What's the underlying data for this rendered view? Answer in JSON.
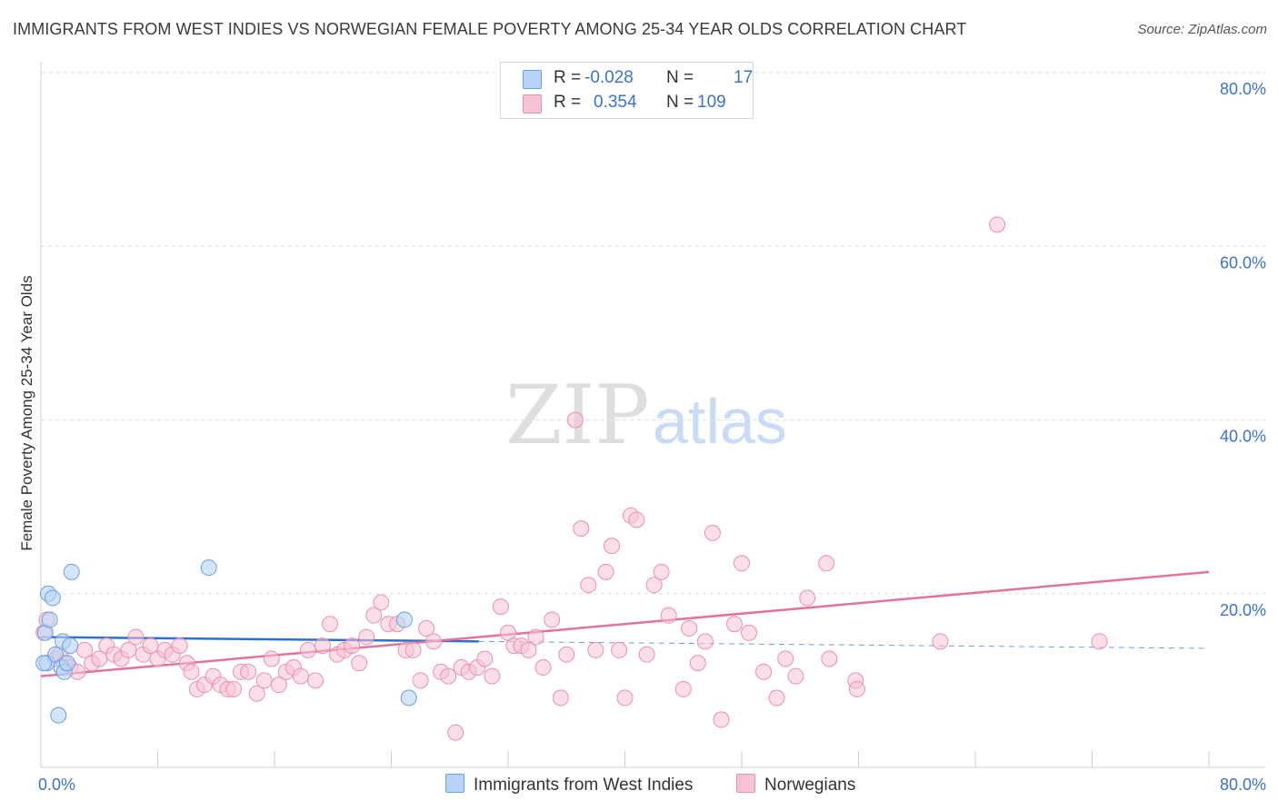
{
  "title": "IMMIGRANTS FROM WEST INDIES VS NORWEGIAN FEMALE POVERTY AMONG 25-34 YEAR OLDS CORRELATION CHART",
  "source": "Source: ZipAtlas.com",
  "watermark": {
    "zip": "ZIP",
    "atlas": "atlas"
  },
  "legend": {
    "rows": [
      {
        "r_label": "R =",
        "r_value": "-0.028",
        "n_label": "N =",
        "n_value": "17"
      },
      {
        "r_label": "R =",
        "r_value": "0.354",
        "n_label": "N =",
        "n_value": "109"
      }
    ]
  },
  "colors": {
    "blue_fill": "#b8d3f5",
    "blue_stroke": "#6a9fe0",
    "blue_line": "#2f6fd1",
    "pink_fill": "#f7c2d4",
    "pink_stroke": "#e890b0",
    "pink_line": "#e2729a",
    "tick_label": "#3b73c7"
  },
  "chart_data": {
    "type": "scatter",
    "title": "IMMIGRANTS FROM WEST INDIES VS NORWEGIAN FEMALE POVERTY AMONG 25-34 YEAR OLDS CORRELATION CHART",
    "xlabel": "",
    "ylabel": "Female Poverty Among 25-34 Year Olds",
    "xlim": [
      0,
      80
    ],
    "ylim": [
      0,
      80
    ],
    "x_tick_labels": [
      "0.0%",
      "80.0%"
    ],
    "y_tick_labels": [
      "20.0%",
      "40.0%",
      "60.0%",
      "80.0%"
    ],
    "y_ticks": [
      20,
      40,
      60,
      80
    ],
    "grid": true,
    "legend_position": "top-center",
    "series": [
      {
        "name": "Immigrants from West Indies",
        "color": "blue",
        "trend": {
          "x": [
            0,
            30
          ],
          "y": [
            15.0,
            14.5
          ],
          "dashed_to": [
            80,
            13.7
          ]
        },
        "points": [
          [
            0.3,
            15.5
          ],
          [
            0.4,
            12.0
          ],
          [
            0.5,
            20.0
          ],
          [
            0.6,
            17.0
          ],
          [
            0.8,
            19.5
          ],
          [
            1.0,
            13.0
          ],
          [
            1.2,
            6.0
          ],
          [
            1.4,
            11.5
          ],
          [
            1.5,
            14.5
          ],
          [
            1.6,
            11.0
          ],
          [
            1.8,
            12.0
          ],
          [
            2.0,
            14.0
          ],
          [
            2.1,
            22.5
          ],
          [
            11.5,
            23.0
          ],
          [
            24.9,
            17.0
          ],
          [
            25.2,
            8.0
          ],
          [
            0.2,
            12.0
          ]
        ]
      },
      {
        "name": "Norwegians",
        "color": "pink",
        "trend": {
          "x": [
            0,
            80
          ],
          "y": [
            10.5,
            22.5
          ]
        },
        "points": [
          [
            0.2,
            15.5
          ],
          [
            0.4,
            17.0
          ],
          [
            1.0,
            12.5
          ],
          [
            1.3,
            13.0
          ],
          [
            1.6,
            12.0
          ],
          [
            2.0,
            11.5
          ],
          [
            2.5,
            11.0
          ],
          [
            3.0,
            13.5
          ],
          [
            3.5,
            12.0
          ],
          [
            4.0,
            12.5
          ],
          [
            4.5,
            14.0
          ],
          [
            5.0,
            13.0
          ],
          [
            5.5,
            12.5
          ],
          [
            6.0,
            13.5
          ],
          [
            6.5,
            15.0
          ],
          [
            7.0,
            13.0
          ],
          [
            7.5,
            14.0
          ],
          [
            8.0,
            12.5
          ],
          [
            8.5,
            13.5
          ],
          [
            9.0,
            13.0
          ],
          [
            9.5,
            14.0
          ],
          [
            10.0,
            12.0
          ],
          [
            10.3,
            11.0
          ],
          [
            10.7,
            9.0
          ],
          [
            11.2,
            9.5
          ],
          [
            11.8,
            10.5
          ],
          [
            12.3,
            9.5
          ],
          [
            12.8,
            9.0
          ],
          [
            13.2,
            9.0
          ],
          [
            13.7,
            11.0
          ],
          [
            14.2,
            11.0
          ],
          [
            14.8,
            8.5
          ],
          [
            15.3,
            10.0
          ],
          [
            15.8,
            12.5
          ],
          [
            16.3,
            9.5
          ],
          [
            16.8,
            11.0
          ],
          [
            17.3,
            11.5
          ],
          [
            17.8,
            10.5
          ],
          [
            18.3,
            13.5
          ],
          [
            18.8,
            10.0
          ],
          [
            19.3,
            14.0
          ],
          [
            19.8,
            16.5
          ],
          [
            20.3,
            13.0
          ],
          [
            20.8,
            13.5
          ],
          [
            21.3,
            14.0
          ],
          [
            21.8,
            12.0
          ],
          [
            22.3,
            15.0
          ],
          [
            22.8,
            17.5
          ],
          [
            23.3,
            19.0
          ],
          [
            23.8,
            16.5
          ],
          [
            24.4,
            16.5
          ],
          [
            25.0,
            13.5
          ],
          [
            25.5,
            13.5
          ],
          [
            26.0,
            10.0
          ],
          [
            26.4,
            16.0
          ],
          [
            26.9,
            14.5
          ],
          [
            27.4,
            11.0
          ],
          [
            27.9,
            10.5
          ],
          [
            28.4,
            4.0
          ],
          [
            28.8,
            11.5
          ],
          [
            29.3,
            11.0
          ],
          [
            29.9,
            11.5
          ],
          [
            30.4,
            12.5
          ],
          [
            30.9,
            10.5
          ],
          [
            31.5,
            18.5
          ],
          [
            32.0,
            15.5
          ],
          [
            32.4,
            14.0
          ],
          [
            32.9,
            14.0
          ],
          [
            33.4,
            13.5
          ],
          [
            33.9,
            15.0
          ],
          [
            34.4,
            11.5
          ],
          [
            35.0,
            17.0
          ],
          [
            35.6,
            8.0
          ],
          [
            36.0,
            13.0
          ],
          [
            36.6,
            40.0
          ],
          [
            37.0,
            27.5
          ],
          [
            37.5,
            21.0
          ],
          [
            38.0,
            13.5
          ],
          [
            38.7,
            22.5
          ],
          [
            39.1,
            25.5
          ],
          [
            39.6,
            13.5
          ],
          [
            40.0,
            8.0
          ],
          [
            40.4,
            29.0
          ],
          [
            40.8,
            28.5
          ],
          [
            41.5,
            13.0
          ],
          [
            42.0,
            21.0
          ],
          [
            42.5,
            22.5
          ],
          [
            43.0,
            17.5
          ],
          [
            44.0,
            9.0
          ],
          [
            44.4,
            16.0
          ],
          [
            45.0,
            12.0
          ],
          [
            45.5,
            14.5
          ],
          [
            46.0,
            27.0
          ],
          [
            46.6,
            5.5
          ],
          [
            47.5,
            16.5
          ],
          [
            48.0,
            23.5
          ],
          [
            48.5,
            15.5
          ],
          [
            49.5,
            11.0
          ],
          [
            50.4,
            8.0
          ],
          [
            51.0,
            12.5
          ],
          [
            51.7,
            10.5
          ],
          [
            52.5,
            19.5
          ],
          [
            53.8,
            23.5
          ],
          [
            54.0,
            12.5
          ],
          [
            55.8,
            10.0
          ],
          [
            55.9,
            9.0
          ],
          [
            61.6,
            14.5
          ],
          [
            65.5,
            62.5
          ],
          [
            72.5,
            14.5
          ]
        ]
      }
    ]
  },
  "bottom_legend": [
    "Immigrants from West Indies",
    "Norwegians"
  ]
}
